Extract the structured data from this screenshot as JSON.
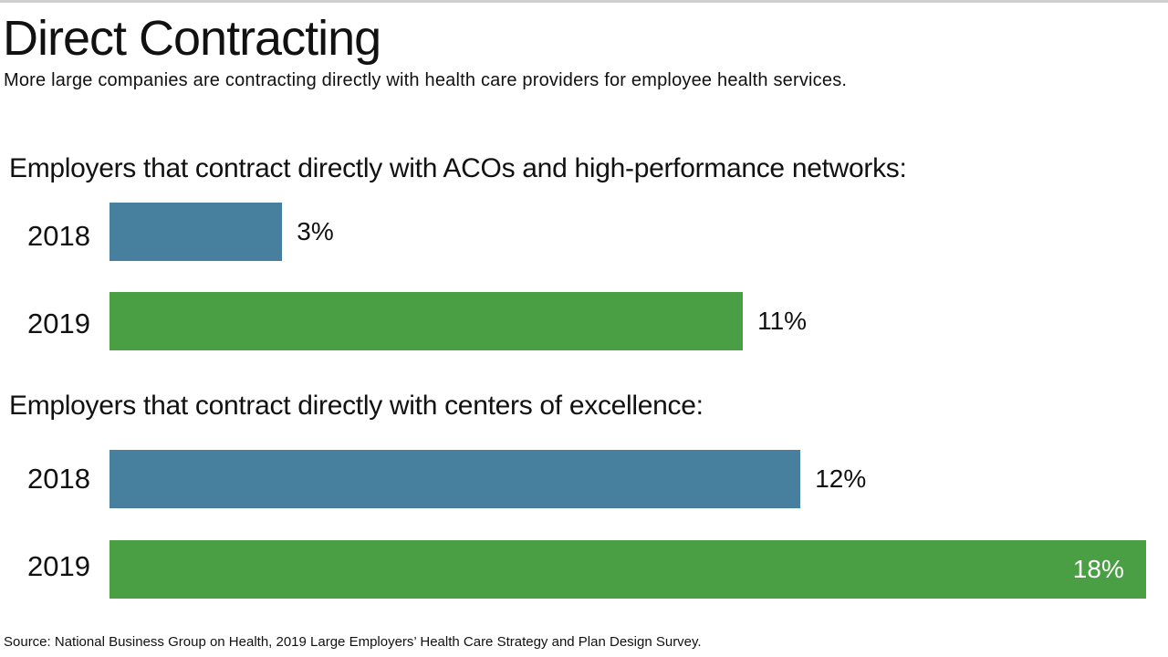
{
  "title": "Direct Contracting",
  "subtitle": "More large companies are contracting directly with health care providers for employee health services.",
  "source": "Source: National Business Group on Health, 2019 Large Employers’ Health Care Strategy and Plan Design Survey.",
  "colors": {
    "2018": "#47809e",
    "2019": "#4a9f45"
  },
  "chart_data": {
    "type": "bar",
    "orientation": "horizontal",
    "unit": "%",
    "grid": false,
    "groups": [
      {
        "heading": "Employers that contract directly with ACOs and high-performance networks:",
        "bars": [
          {
            "category": "2018",
            "value": 3,
            "label": "3%"
          },
          {
            "category": "2019",
            "value": 11,
            "label": "11%"
          }
        ]
      },
      {
        "heading": "Employers that contract directly with centers of excellence:",
        "bars": [
          {
            "category": "2018",
            "value": 12,
            "label": "12%"
          },
          {
            "category": "2019",
            "value": 18,
            "label": "18%"
          }
        ]
      }
    ]
  }
}
